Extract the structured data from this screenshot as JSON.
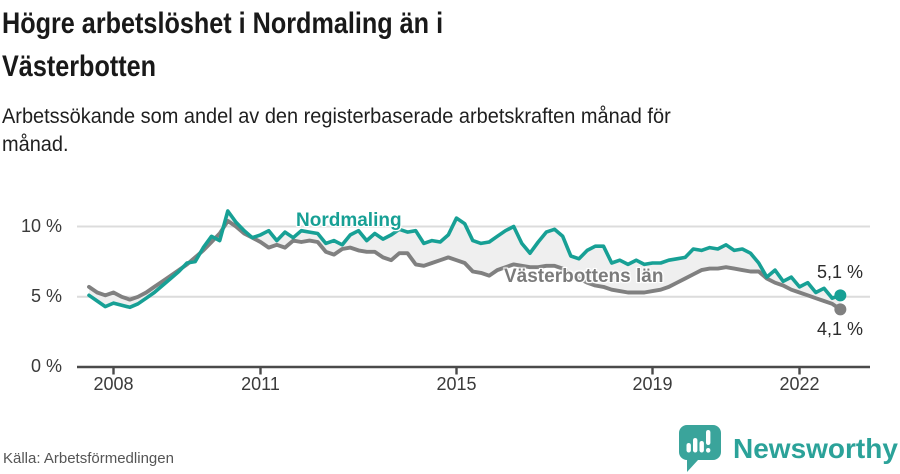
{
  "header": {
    "title_lines": [
      "Högre arbetslöshet i Nordmaling än i",
      "Västerbotten"
    ],
    "subtitle_lines": [
      "Arbetssökande som andel av den registerbaserade arbetskraften månad för",
      "månad."
    ]
  },
  "footer": {
    "source": "Källa: Arbetsförmedlingen",
    "brand_name": "Newsworthy"
  },
  "colors": {
    "accent_teal": "#17a095",
    "series_gray": "#808080",
    "band": "#efefef",
    "grid": "#dcdcdc",
    "axis": "#4a4a4a",
    "logo_teal": "#3aa49b"
  },
  "chart_data": {
    "type": "line",
    "title": "Högre arbetslöshet i Nordmaling än i Västerbotten",
    "subtitle": "Arbetssökande som andel av den registerbaserade arbetskraften månad för månad.",
    "unit": "%",
    "ylim": [
      0,
      11.5
    ],
    "grid": true,
    "legend_position": "inline-labels",
    "x_start": 2007.5,
    "x_step_years": 0.16667,
    "x_tick_years": [
      2008,
      2011,
      2015,
      2019,
      2022
    ],
    "x_tick_labels": [
      "2008",
      "2011",
      "2015",
      "2019",
      "2022"
    ],
    "y_tick_values": [
      0,
      5,
      10
    ],
    "y_tick_labels": [
      "0 %",
      "5 %",
      "10 %"
    ],
    "series": [
      {
        "name": "Nordmaling",
        "color": "#17a095",
        "end_label": "5,1 %",
        "end_value": 5.1,
        "values": [
          5.1,
          4.7,
          4.3,
          4.55,
          4.4,
          4.25,
          4.5,
          4.9,
          5.3,
          5.8,
          6.3,
          6.8,
          7.4,
          7.5,
          8.5,
          9.3,
          9.0,
          11.1,
          10.3,
          9.7,
          9.2,
          9.4,
          9.7,
          9.0,
          9.6,
          9.2,
          9.7,
          9.6,
          9.5,
          8.8,
          9.0,
          8.7,
          9.4,
          9.7,
          9.0,
          9.5,
          9.1,
          9.4,
          9.8,
          9.6,
          9.7,
          8.8,
          9.0,
          8.9,
          9.4,
          10.6,
          10.2,
          9.0,
          8.8,
          8.9,
          9.3,
          9.7,
          10.0,
          8.8,
          8.1,
          8.9,
          9.6,
          9.8,
          9.3,
          7.9,
          7.7,
          8.3,
          8.6,
          8.6,
          7.4,
          7.6,
          7.3,
          7.6,
          7.3,
          7.4,
          7.4,
          7.6,
          7.7,
          7.8,
          8.4,
          8.3,
          8.5,
          8.4,
          8.7,
          8.3,
          8.4,
          8.1,
          7.4,
          6.4,
          6.9,
          6.1,
          6.4,
          5.7,
          6.0,
          5.3,
          5.6,
          4.9,
          5.1
        ]
      },
      {
        "name": "Västerbottens län",
        "color": "#808080",
        "end_label": "4,1 %",
        "end_value": 4.1,
        "values": [
          5.7,
          5.3,
          5.1,
          5.3,
          5.0,
          4.8,
          5.0,
          5.3,
          5.7,
          6.1,
          6.5,
          6.9,
          7.3,
          7.8,
          8.3,
          8.9,
          9.5,
          10.4,
          10.0,
          9.5,
          9.2,
          8.9,
          8.5,
          8.7,
          8.5,
          9.0,
          8.9,
          9.0,
          8.9,
          8.2,
          8.0,
          8.4,
          8.5,
          8.3,
          8.2,
          8.2,
          7.8,
          7.6,
          8.1,
          8.1,
          7.3,
          7.2,
          7.4,
          7.6,
          7.8,
          7.6,
          7.4,
          6.8,
          6.7,
          6.5,
          6.9,
          7.1,
          7.3,
          7.2,
          7.1,
          7.1,
          7.2,
          7.2,
          7.0,
          6.6,
          6.3,
          6.0,
          5.8,
          5.7,
          5.5,
          5.4,
          5.3,
          5.3,
          5.3,
          5.4,
          5.5,
          5.7,
          6.0,
          6.3,
          6.6,
          6.9,
          7.0,
          7.0,
          7.1,
          7.0,
          6.9,
          6.8,
          6.8,
          6.3,
          6.0,
          5.8,
          5.5,
          5.3,
          5.1,
          4.9,
          4.7,
          4.5,
          4.1
        ]
      }
    ]
  }
}
